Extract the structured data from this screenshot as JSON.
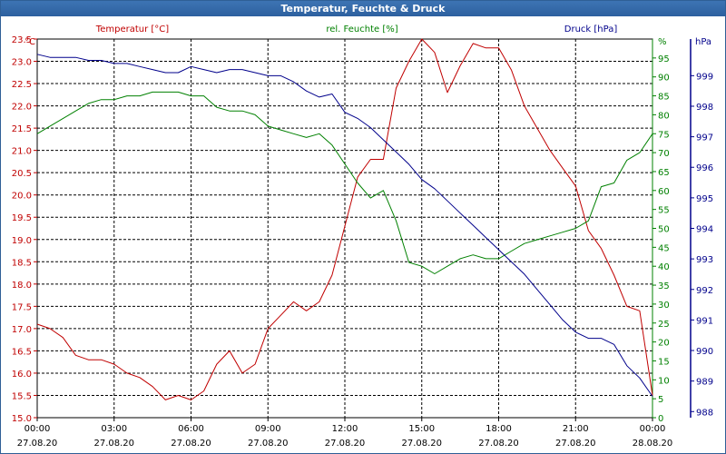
{
  "window": {
    "title": "Temperatur, Feuchte & Druck"
  },
  "colors": {
    "temperature": "#c00000",
    "humidity": "#008000",
    "pressure": "#00008b",
    "grid": "#000000",
    "title_bar": "#2f66a8"
  },
  "chart_data": {
    "type": "line",
    "title": "Temperatur, Feuchte & Druck",
    "grid": true,
    "legend_placement": "top",
    "x_ticks": [
      {
        "time": "00:00",
        "date": "27.08.20"
      },
      {
        "time": "03:00",
        "date": "27.08.20"
      },
      {
        "time": "06:00",
        "date": "27.08.20"
      },
      {
        "time": "09:00",
        "date": "27.08.20"
      },
      {
        "time": "12:00",
        "date": "27.08.20"
      },
      {
        "time": "15:00",
        "date": "27.08.20"
      },
      {
        "time": "18:00",
        "date": "27.08.20"
      },
      {
        "time": "21:00",
        "date": "27.08.20"
      },
      {
        "time": "00:00",
        "date": "28.08.20"
      }
    ],
    "xlim_hours": [
      0,
      24
    ],
    "axes": {
      "temperature": {
        "label": "Temperatur [°C]",
        "unit": "°C",
        "ylim": [
          15.0,
          23.5
        ],
        "ticks": [
          "15.0",
          "15.5",
          "16.0",
          "16.5",
          "17.0",
          "17.5",
          "18.0",
          "18.5",
          "19.0",
          "19.5",
          "20.0",
          "20.5",
          "21.0",
          "21.5",
          "22.0",
          "22.5",
          "23.0",
          "23.5"
        ]
      },
      "humidity": {
        "label": "rel. Feuchte [%]",
        "unit": "%",
        "ylim": [
          0,
          100
        ],
        "ticks": [
          "0",
          "5",
          "10",
          "15",
          "20",
          "25",
          "30",
          "35",
          "40",
          "45",
          "50",
          "55",
          "60",
          "65",
          "70",
          "75",
          "80",
          "85",
          "90",
          "95"
        ]
      },
      "pressure": {
        "label": "Druck [hPa]",
        "unit": "hPa",
        "ylim": [
          987.8,
          1000.2
        ],
        "ticks": [
          "988",
          "989",
          "990",
          "991",
          "992",
          "993",
          "994",
          "995",
          "996",
          "997",
          "998",
          "999"
        ]
      }
    },
    "series": [
      {
        "name": "Temperatur [°C]",
        "axis": "temperature",
        "x": [
          0,
          0.5,
          1,
          1.5,
          2,
          2.5,
          3,
          3.5,
          4,
          4.5,
          5,
          5.5,
          6,
          6.5,
          7,
          7.5,
          8,
          8.5,
          9,
          9.5,
          10,
          10.5,
          11,
          11.5,
          12,
          12.5,
          13,
          13.5,
          14,
          14.5,
          15,
          15.5,
          16,
          16.5,
          17,
          17.5,
          18,
          18.5,
          19,
          19.5,
          20,
          20.5,
          21,
          21.5,
          22,
          22.5,
          23,
          23.5,
          24
        ],
        "values": [
          17.1,
          17.0,
          16.8,
          16.4,
          16.3,
          16.3,
          16.2,
          16.0,
          15.9,
          15.7,
          15.4,
          15.5,
          15.4,
          15.6,
          16.2,
          16.5,
          16.0,
          16.2,
          17.0,
          17.3,
          17.6,
          17.4,
          17.6,
          18.2,
          19.3,
          20.4,
          20.8,
          20.8,
          22.4,
          23.0,
          23.5,
          23.2,
          22.3,
          22.9,
          23.4,
          23.3,
          23.3,
          22.8,
          22.0,
          21.5,
          21.0,
          20.6,
          20.2,
          19.2,
          18.8,
          18.2,
          17.5,
          17.4,
          15.5
        ]
      },
      {
        "name": "rel. Feuchte [%]",
        "axis": "humidity",
        "x": [
          0,
          0.5,
          1,
          1.5,
          2,
          2.5,
          3,
          3.5,
          4,
          4.5,
          5,
          5.5,
          6,
          6.5,
          7,
          7.5,
          8,
          8.5,
          9,
          9.5,
          10,
          10.5,
          11,
          11.5,
          12,
          12.5,
          13,
          13.5,
          14,
          14.5,
          15,
          15.5,
          16,
          16.5,
          17,
          17.5,
          18,
          18.5,
          19,
          19.5,
          20,
          20.5,
          21,
          21.5,
          22,
          22.5,
          23,
          23.5,
          24
        ],
        "values": [
          75,
          77,
          79,
          81,
          83,
          84,
          84,
          85,
          85,
          86,
          86,
          86,
          85,
          85,
          82,
          81,
          81,
          80,
          77,
          76,
          75,
          74,
          75,
          72,
          67,
          62,
          58,
          60,
          52,
          41,
          40,
          38,
          40,
          42,
          43,
          42,
          42,
          44,
          46,
          47,
          48,
          49,
          50,
          52,
          61,
          62,
          68,
          70,
          75
        ]
      },
      {
        "name": "Druck [hPa]",
        "axis": "pressure",
        "x": [
          0,
          0.5,
          1,
          1.5,
          2,
          2.5,
          3,
          3.5,
          4,
          4.5,
          5,
          5.5,
          6,
          6.5,
          7,
          7.5,
          8,
          8.5,
          9,
          9.5,
          10,
          10.5,
          11,
          11.5,
          12,
          12.5,
          13,
          13.5,
          14,
          14.5,
          15,
          15.5,
          16,
          16.5,
          17,
          17.5,
          18,
          18.5,
          19,
          19.5,
          20,
          20.5,
          21,
          21.5,
          22,
          22.5,
          23,
          23.5,
          24
        ],
        "values": [
          999.7,
          999.6,
          999.6,
          999.6,
          999.5,
          999.5,
          999.4,
          999.4,
          999.3,
          999.2,
          999.1,
          999.1,
          999.3,
          999.2,
          999.1,
          999.2,
          999.2,
          999.1,
          999.0,
          999.0,
          998.8,
          998.5,
          998.3,
          998.4,
          997.8,
          997.6,
          997.3,
          996.9,
          996.5,
          996.1,
          995.6,
          995.3,
          994.9,
          994.5,
          994.1,
          993.7,
          993.3,
          992.9,
          992.5,
          992.0,
          991.5,
          991.0,
          990.6,
          990.4,
          990.4,
          990.2,
          989.5,
          989.1,
          988.5
        ]
      }
    ]
  }
}
